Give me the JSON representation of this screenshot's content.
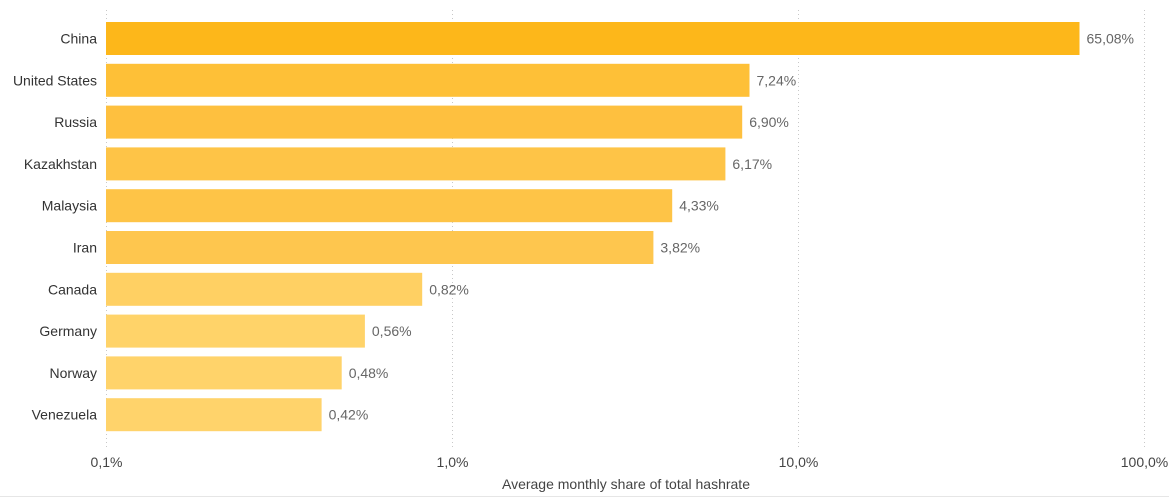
{
  "chart_data": {
    "type": "bar",
    "orientation": "horizontal",
    "xscale": "log",
    "xlim": [
      0.1,
      100
    ],
    "xlabel": "Average monthly share of total hashrate",
    "ylabel": "",
    "title": "",
    "grid": true,
    "xticks": [
      0.1,
      1,
      10,
      100
    ],
    "xtick_labels": [
      "0,1%",
      "1,0%",
      "10,0%",
      "100,0%"
    ],
    "categories": [
      "China",
      "United States",
      "Russia",
      "Kazakhstan",
      "Malaysia",
      "Iran",
      "Canada",
      "Germany",
      "Norway",
      "Venezuela"
    ],
    "values": [
      65.08,
      7.24,
      6.9,
      6.17,
      4.33,
      3.82,
      0.82,
      0.56,
      0.48,
      0.42
    ],
    "value_labels": [
      "65,08%",
      "7,24%",
      "6,90%",
      "6,17%",
      "4,33%",
      "3,82%",
      "0,82%",
      "0,56%",
      "0,48%",
      "0,42%"
    ],
    "colors": [
      "#FDB71A",
      "#FEC037",
      "#FEC03F",
      "#FEC447",
      "#FEC447",
      "#FEC64E",
      "#FFD063",
      "#FFD369",
      "#FFD36A",
      "#FFD36B"
    ]
  }
}
